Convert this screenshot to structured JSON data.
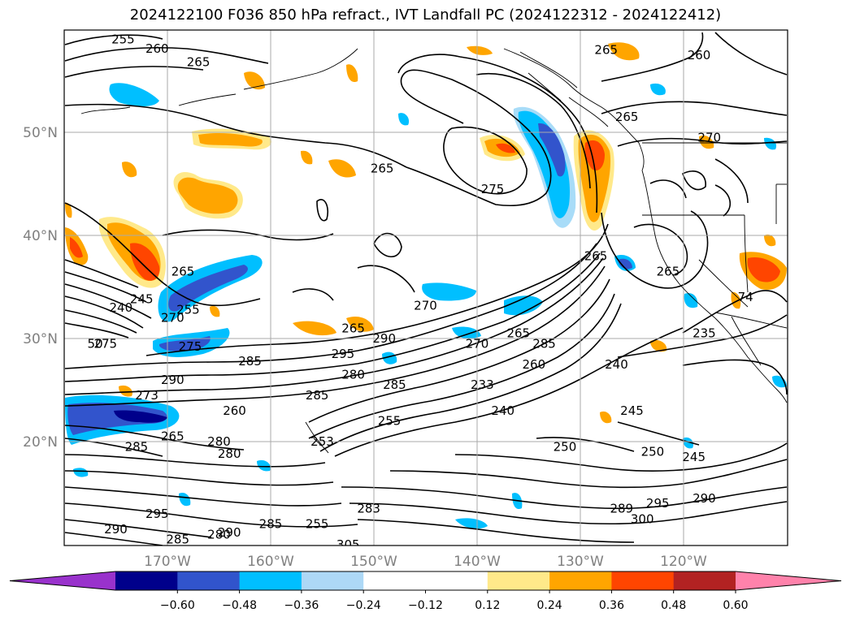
{
  "title": "2024122100 F036 850 hPa refract., IVT Landfall PC (2024122312 - 2024122412)",
  "map": {
    "lat_labels": [
      {
        "lat": 50,
        "text": "50°N"
      },
      {
        "lat": 40,
        "text": "40°N"
      },
      {
        "lat": 30,
        "text": "30°N"
      },
      {
        "lat": 20,
        "text": "20°N"
      }
    ],
    "lon_labels": [
      {
        "lon": -170,
        "text": "170°W"
      },
      {
        "lon": -160,
        "text": "160°W"
      },
      {
        "lon": -150,
        "text": "150°W"
      },
      {
        "lon": -140,
        "text": "140°W"
      },
      {
        "lon": -130,
        "text": "130°W"
      },
      {
        "lon": -120,
        "text": "120°W"
      }
    ],
    "contour_labels": [
      {
        "text": "255",
        "lon": -174.3,
        "lat": 59.0
      },
      {
        "text": "260",
        "lon": -171.0,
        "lat": 58.1
      },
      {
        "text": "265",
        "lon": -167.0,
        "lat": 56.8
      },
      {
        "text": "265",
        "lon": -127.5,
        "lat": 58.0
      },
      {
        "text": "260",
        "lon": -118.5,
        "lat": 57.5
      },
      {
        "text": "265",
        "lon": -125.5,
        "lat": 51.5
      },
      {
        "text": "270",
        "lon": -117.5,
        "lat": 49.5
      },
      {
        "text": "265",
        "lon": -149.2,
        "lat": 46.5
      },
      {
        "text": "275",
        "lon": -138.5,
        "lat": 44.5
      },
      {
        "text": "265",
        "lon": -168.5,
        "lat": 36.5
      },
      {
        "text": "245",
        "lon": -172.5,
        "lat": 33.8
      },
      {
        "text": "240",
        "lon": -174.5,
        "lat": 33.0
      },
      {
        "text": "270",
        "lon": -169.5,
        "lat": 32.0
      },
      {
        "text": "255",
        "lon": -168.0,
        "lat": 32.8
      },
      {
        "text": "265",
        "lon": -128.5,
        "lat": 38.0
      },
      {
        "text": "265",
        "lon": -121.5,
        "lat": 36.5
      },
      {
        "text": "275",
        "lon": -176.0,
        "lat": 29.5
      },
      {
        "text": "275",
        "lon": -167.8,
        "lat": 29.2
      },
      {
        "text": "285",
        "lon": -162.0,
        "lat": 27.8
      },
      {
        "text": "270",
        "lon": -145.0,
        "lat": 33.2
      },
      {
        "text": "265",
        "lon": -152.0,
        "lat": 31.0
      },
      {
        "text": "290",
        "lon": -149.0,
        "lat": 30.0
      },
      {
        "text": "270",
        "lon": -140.0,
        "lat": 29.5
      },
      {
        "text": "265",
        "lon": -136.0,
        "lat": 30.5
      },
      {
        "text": "295",
        "lon": -153.0,
        "lat": 28.5
      },
      {
        "text": "285",
        "lon": -133.5,
        "lat": 29.5
      },
      {
        "text": "290",
        "lon": -169.5,
        "lat": 26.0
      },
      {
        "text": "280",
        "lon": -152.0,
        "lat": 26.5
      },
      {
        "text": "260",
        "lon": -134.5,
        "lat": 27.5
      },
      {
        "text": "240",
        "lon": -126.5,
        "lat": 27.5
      },
      {
        "text": "235",
        "lon": -118.0,
        "lat": 30.5
      },
      {
        "text": "273",
        "lon": -172.0,
        "lat": 24.5
      },
      {
        "text": "285",
        "lon": -155.5,
        "lat": 24.5
      },
      {
        "text": "285",
        "lon": -148.0,
        "lat": 25.5
      },
      {
        "text": "233",
        "lon": -139.5,
        "lat": 25.5
      },
      {
        "text": "260",
        "lon": -163.5,
        "lat": 23.0
      },
      {
        "text": "245",
        "lon": -125.0,
        "lat": 23.0
      },
      {
        "text": "240",
        "lon": -137.5,
        "lat": 23.0
      },
      {
        "text": "255",
        "lon": -148.5,
        "lat": 22.0
      },
      {
        "text": "265",
        "lon": -169.5,
        "lat": 20.5
      },
      {
        "text": "280",
        "lon": -165.0,
        "lat": 20.0
      },
      {
        "text": "280",
        "lon": -164.0,
        "lat": 18.8
      },
      {
        "text": "285",
        "lon": -173.0,
        "lat": 19.5
      },
      {
        "text": "253",
        "lon": -155.0,
        "lat": 20.0
      },
      {
        "text": "250",
        "lon": -131.5,
        "lat": 19.5
      },
      {
        "text": "250",
        "lon": -123.0,
        "lat": 19.0
      },
      {
        "text": "245",
        "lon": -119.0,
        "lat": 18.5
      },
      {
        "text": "295",
        "lon": -171.0,
        "lat": 13.0
      },
      {
        "text": "290",
        "lon": -175.0,
        "lat": 11.5
      },
      {
        "text": "285",
        "lon": -160.0,
        "lat": 12.0
      },
      {
        "text": "255",
        "lon": -155.5,
        "lat": 12.0
      },
      {
        "text": "283",
        "lon": -150.5,
        "lat": 13.5
      },
      {
        "text": "289",
        "lon": -126.0,
        "lat": 13.5
      },
      {
        "text": "295",
        "lon": -122.5,
        "lat": 14.0
      },
      {
        "text": "300",
        "lon": -124.0,
        "lat": 12.5
      },
      {
        "text": "290",
        "lon": -118.0,
        "lat": 14.5
      },
      {
        "text": "285",
        "lon": -169.0,
        "lat": 10.5
      },
      {
        "text": "280",
        "lon": -165.0,
        "lat": 11.0
      },
      {
        "text": "305",
        "lon": -152.5,
        "lat": 10.0
      },
      {
        "text": "290",
        "lon": -164.0,
        "lat": 11.2
      },
      {
        "text": "50",
        "lon": -177.0,
        "lat": 29.5
      },
      {
        "text": "74",
        "lon": -114.0,
        "lat": 34.0
      }
    ],
    "colors": {
      "pos_light": "#ffe98a",
      "pos_orange": "#ffa500",
      "pos_red": "#ff4500",
      "neg_light": "#a8dcf8",
      "neg_blue": "#00bfff",
      "neg_dark": "#3254cc"
    }
  },
  "colorbar": {
    "colors": [
      "#9932cc",
      "#00008b",
      "#3154cc",
      "#00bfff",
      "#add8f6",
      "#ffffff",
      "#ffffff",
      "#ffe98a",
      "#ffa500",
      "#ff4500",
      "#b22222",
      "#ff82ab"
    ],
    "ticks": [
      "−0.60",
      "−0.48",
      "−0.36",
      "−0.24",
      "−0.12",
      "0.12",
      "0.24",
      "0.36",
      "0.48",
      "0.60"
    ]
  }
}
